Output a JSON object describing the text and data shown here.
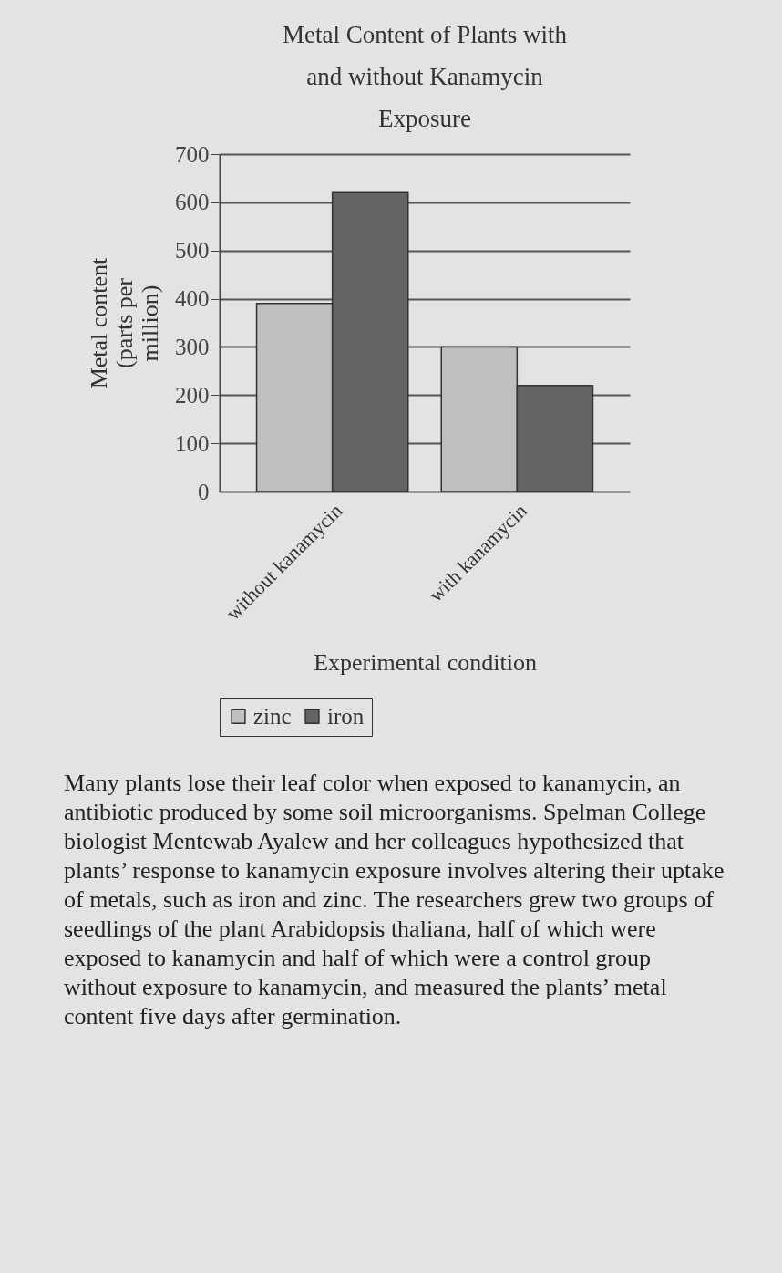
{
  "chart_data": {
    "type": "bar",
    "title": "Metal Content of Plants with and without Kanamycin Exposure",
    "xlabel": "Experimental condition",
    "ylabel": "Metal content (parts per million)",
    "categories": [
      "without kanamycin",
      "with kanamycin"
    ],
    "series": [
      {
        "name": "zinc",
        "color": "#c0bfc0",
        "values": [
          390,
          300
        ]
      },
      {
        "name": "iron",
        "color": "#666364",
        "values": [
          620,
          220
        ]
      }
    ],
    "ylim": [
      0,
      700
    ],
    "yticks": [
      0,
      100,
      200,
      300,
      400,
      500,
      600,
      700
    ],
    "grid": "y",
    "legend": "bottom",
    "annotations": [
      "Many plants lose their leaf color when exposed to kanamycin, an antibiotic produced by some soil microorganisms. Spelman College biologist Mentewab Ayalew and her colleagues hypothesized that plants’ response to kanamycin exposure involves altering their uptake of metals, such as iron and zinc. The researchers grew two groups of seedlings of the plant Arabidopsis thaliana, half of which were exposed to kanamycin and half of which were a control group without exposure to kanamycin, and measured the plants’ metal content five days after germination."
    ]
  }
}
